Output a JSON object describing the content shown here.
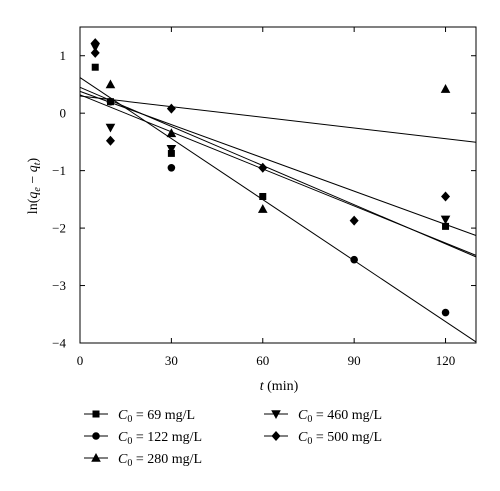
{
  "chart_data": {
    "type": "scatter",
    "xlabel": "t (min)",
    "ylabel": "ln(q_e − q_t)",
    "xlim": [
      0,
      130
    ],
    "ylim": [
      -4,
      1.5
    ],
    "x_ticks": [
      0,
      30,
      60,
      90,
      120
    ],
    "y_ticks": [
      1,
      0,
      -1,
      -2,
      -3,
      -4
    ],
    "x_tick_labels": [
      "0",
      "30",
      "60",
      "90",
      "120"
    ],
    "y_tick_labels": [
      "1",
      "0",
      "−1",
      "−2",
      "−3",
      "−4"
    ],
    "grid": false,
    "legend_position": "bottom",
    "series": [
      {
        "name": "C0 = 69 mg/L",
        "name_lead": "C",
        "name_sub": "0",
        "name_rest": " = 69 mg/L",
        "marker": "square",
        "x": [
          5,
          10,
          30,
          60,
          120
        ],
        "y": [
          0.8,
          0.2,
          -0.7,
          -1.45,
          -1.97
        ],
        "fit": {
          "intercept": 0.38,
          "slope": -0.0193
        }
      },
      {
        "name": "C0 = 122 mg/L",
        "name_lead": "C",
        "name_sub": "0",
        "name_rest": " = 122 mg/L",
        "marker": "circle",
        "x": [
          10,
          30,
          90,
          120
        ],
        "y": [
          0.2,
          -0.95,
          -2.55,
          -3.47
        ],
        "fit": {
          "intercept": 0.62,
          "slope": -0.0354
        }
      },
      {
        "name": "C0 = 280 mg/L",
        "name_lead": "C",
        "name_sub": "0",
        "name_rest": " = 280 mg/L",
        "marker": "triangle-up",
        "x": [
          10,
          30,
          60,
          120
        ],
        "y": [
          0.5,
          -0.35,
          -1.67,
          0.42
        ],
        "fit": {
          "intercept": 0.3,
          "slope": -0.0062
        }
      },
      {
        "name": "C0 = 460 mg/L",
        "name_lead": "C",
        "name_sub": "0",
        "name_rest": " = 460 mg/L",
        "marker": "triangle-down",
        "x": [
          5,
          10,
          30,
          120
        ],
        "y": [
          1.15,
          -0.25,
          -0.62,
          -1.85
        ],
        "fit": {
          "intercept": 0.32,
          "slope": -0.0215
        }
      },
      {
        "name": "C0 = 500 mg/L",
        "name_lead": "C",
        "name_sub": "0",
        "name_rest": " = 500 mg/L",
        "marker": "diamond",
        "x": [
          5,
          5,
          10,
          30,
          60,
          90,
          120
        ],
        "y": [
          1.22,
          1.05,
          -0.48,
          0.08,
          -0.95,
          -1.87,
          -1.45
        ],
        "fit": {
          "intercept": 0.45,
          "slope": -0.0227
        }
      }
    ]
  }
}
